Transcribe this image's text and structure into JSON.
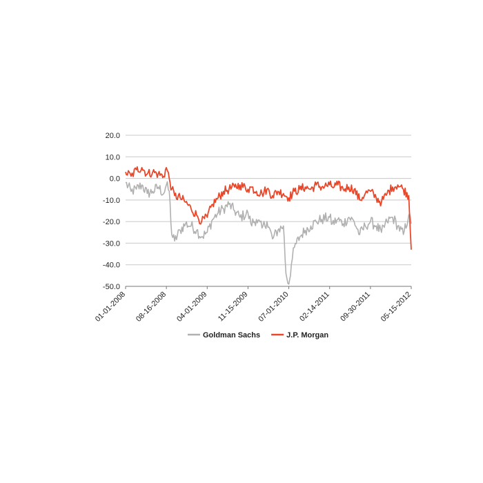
{
  "chart_data": {
    "type": "line",
    "title": "",
    "xlabel": "",
    "ylabel": "",
    "ylim": [
      -50,
      20
    ],
    "yticks": [
      "20.0",
      "10.0",
      "0.0",
      "-10.0",
      "-20.0",
      "-30.0",
      "-40.0",
      "-50.0"
    ],
    "xticks": [
      "01-01-2008",
      "08-16-2008",
      "04-01-2009",
      "11-15-2009",
      "07-01-2010",
      "02-14-2011",
      "09-30-2011",
      "05-15-2012"
    ],
    "xlim": [
      "01-01-2008",
      "05-15-2012"
    ],
    "grid": "horizontal",
    "legend_position": "bottom",
    "series": [
      {
        "name": "Goldman Sachs",
        "color": "#b0b0b0",
        "points": [
          [
            "01-01-2008",
            -2
          ],
          [
            "02-01-2008",
            -6
          ],
          [
            "03-01-2008",
            -5
          ],
          [
            "04-01-2008",
            -3
          ],
          [
            "05-01-2008",
            -7
          ],
          [
            "06-01-2008",
            -6
          ],
          [
            "07-01-2008",
            -4
          ],
          [
            "08-01-2008",
            -7
          ],
          [
            "08-16-2008",
            -3
          ],
          [
            "09-01-2008",
            -6
          ],
          [
            "09-15-2008",
            -26
          ],
          [
            "10-01-2008",
            -29
          ],
          [
            "11-01-2008",
            -24
          ],
          [
            "12-01-2008",
            -21
          ],
          [
            "01-01-2009",
            -22
          ],
          [
            "02-01-2009",
            -24
          ],
          [
            "03-01-2009",
            -27
          ],
          [
            "04-01-2009",
            -25
          ],
          [
            "05-01-2009",
            -19
          ],
          [
            "06-01-2009",
            -16
          ],
          [
            "07-01-2009",
            -14
          ],
          [
            "08-01-2009",
            -12
          ],
          [
            "09-01-2009",
            -15
          ],
          [
            "10-01-2009",
            -18
          ],
          [
            "11-15-2009",
            -16
          ],
          [
            "12-01-2009",
            -21
          ],
          [
            "01-01-2010",
            -19
          ],
          [
            "02-01-2010",
            -23
          ],
          [
            "03-01-2010",
            -20
          ],
          [
            "04-01-2010",
            -28
          ],
          [
            "05-01-2010",
            -24
          ],
          [
            "06-01-2010",
            -22
          ],
          [
            "06-15-2010",
            -44
          ],
          [
            "07-01-2010",
            -49
          ],
          [
            "07-15-2010",
            -40
          ],
          [
            "08-01-2010",
            -32
          ],
          [
            "09-01-2010",
            -27
          ],
          [
            "10-01-2010",
            -24
          ],
          [
            "11-01-2010",
            -22
          ],
          [
            "12-01-2010",
            -20
          ],
          [
            "01-01-2011",
            -19
          ],
          [
            "02-14-2011",
            -18
          ],
          [
            "03-01-2011",
            -21
          ],
          [
            "04-01-2011",
            -19
          ],
          [
            "05-01-2011",
            -21
          ],
          [
            "06-01-2011",
            -18
          ],
          [
            "07-01-2011",
            -20
          ],
          [
            "08-01-2011",
            -26
          ],
          [
            "09-01-2011",
            -22
          ],
          [
            "09-30-2011",
            -20
          ],
          [
            "11-01-2011",
            -22
          ],
          [
            "12-01-2011",
            -25
          ],
          [
            "01-01-2012",
            -20
          ],
          [
            "02-01-2012",
            -18
          ],
          [
            "03-01-2012",
            -22
          ],
          [
            "04-01-2012",
            -26
          ],
          [
            "05-01-2012",
            -17
          ],
          [
            "05-15-2012",
            -21
          ]
        ]
      },
      {
        "name": "J.P. Morgan",
        "color": "#e8472a",
        "points": [
          [
            "01-01-2008",
            3
          ],
          [
            "02-01-2008",
            1
          ],
          [
            "03-01-2008",
            4
          ],
          [
            "04-01-2008",
            5
          ],
          [
            "05-01-2008",
            2
          ],
          [
            "06-01-2008",
            3
          ],
          [
            "07-01-2008",
            2
          ],
          [
            "08-01-2008",
            1
          ],
          [
            "08-16-2008",
            5
          ],
          [
            "09-01-2008",
            0
          ],
          [
            "09-15-2008",
            -5
          ],
          [
            "10-01-2008",
            -8
          ],
          [
            "11-01-2008",
            -9
          ],
          [
            "12-01-2008",
            -11
          ],
          [
            "01-01-2009",
            -14
          ],
          [
            "02-01-2009",
            -17
          ],
          [
            "03-01-2009",
            -20
          ],
          [
            "04-01-2009",
            -18
          ],
          [
            "05-01-2009",
            -12
          ],
          [
            "06-01-2009",
            -9
          ],
          [
            "07-01-2009",
            -6
          ],
          [
            "08-01-2009",
            -5
          ],
          [
            "09-01-2009",
            -4
          ],
          [
            "10-01-2009",
            -3
          ],
          [
            "11-15-2009",
            -5
          ],
          [
            "12-01-2009",
            -4
          ],
          [
            "01-01-2010",
            -6
          ],
          [
            "02-01-2010",
            -7
          ],
          [
            "03-01-2010",
            -5
          ],
          [
            "04-01-2010",
            -8
          ],
          [
            "05-01-2010",
            -6
          ],
          [
            "06-01-2010",
            -7
          ],
          [
            "07-01-2010",
            -9
          ],
          [
            "08-01-2010",
            -6
          ],
          [
            "09-01-2010",
            -5
          ],
          [
            "10-01-2010",
            -4
          ],
          [
            "11-01-2010",
            -5
          ],
          [
            "12-01-2010",
            -3
          ],
          [
            "01-01-2011",
            -4
          ],
          [
            "02-14-2011",
            -3
          ],
          [
            "03-01-2011",
            -4
          ],
          [
            "04-01-2011",
            -3
          ],
          [
            "05-01-2011",
            -5
          ],
          [
            "06-01-2011",
            -4
          ],
          [
            "07-01-2011",
            -5
          ],
          [
            "08-01-2011",
            -10
          ],
          [
            "09-01-2011",
            -7
          ],
          [
            "09-30-2011",
            -6
          ],
          [
            "11-01-2011",
            -9
          ],
          [
            "12-01-2011",
            -11
          ],
          [
            "01-01-2012",
            -7
          ],
          [
            "02-01-2012",
            -4
          ],
          [
            "03-01-2012",
            -3
          ],
          [
            "04-01-2012",
            -5
          ],
          [
            "05-01-2012",
            -8
          ],
          [
            "05-15-2012",
            -33
          ]
        ]
      }
    ]
  }
}
